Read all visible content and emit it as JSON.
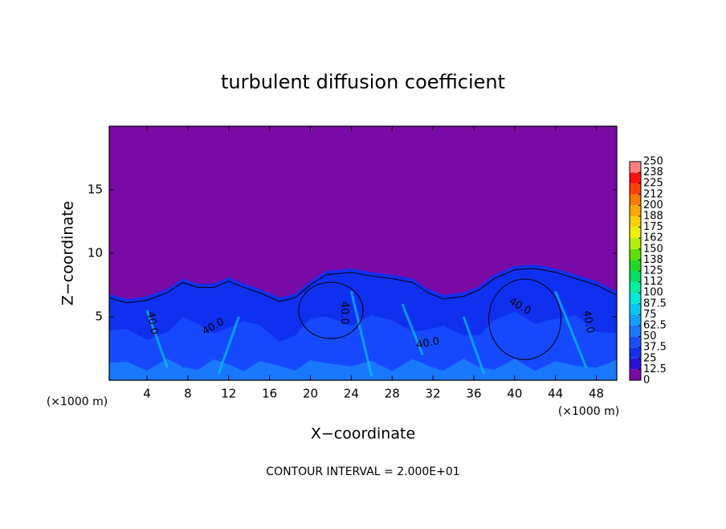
{
  "chart_data": {
    "type": "contour",
    "title": "turbulent diffusion coefficient",
    "xlabel": "X−coordinate",
    "ylabel": "Z−coordinate",
    "x_unit": "(×1000 m)",
    "y_unit": "(×1000 m)",
    "footer": "CONTOUR INTERVAL = 2.000E+01",
    "xlim": [
      0.3,
      50
    ],
    "ylim": [
      0,
      20
    ],
    "xticks": [
      4,
      8,
      12,
      16,
      20,
      24,
      28,
      32,
      36,
      40,
      44,
      48
    ],
    "yticks": [
      5,
      10,
      15
    ],
    "levels": [
      0,
      12.5,
      25,
      37.5,
      50,
      62.5,
      75,
      87.5,
      100,
      {
        "value": 112.5,
        "label": "112"
      },
      125,
      {
        "value": 137.5,
        "label": "138"
      },
      150,
      {
        "value": 162.5,
        "label": "162"
      },
      175,
      {
        "value": 187.5,
        "label": "188"
      },
      200,
      {
        "value": 212.5,
        "label": "212"
      },
      225,
      {
        "value": 237.5,
        "label": "238"
      },
      250
    ],
    "colors": [
      "#7a0aa6",
      "#2a10d8",
      "#1030f0",
      "#1850ff",
      "#1a78ff",
      "#10a0ff",
      "#00c8f0",
      "#00e8d8",
      "#00f0a0",
      "#00e060",
      "#20d820",
      "#60e000",
      "#b0f000",
      "#f0f000",
      "#ffd000",
      "#ffa800",
      "#ff7800",
      "#ff4000",
      "#ff1010",
      "#ff8080"
    ],
    "contour_labels": [
      "40.0",
      "40.0",
      "40.0",
      "40.0",
      "40.0",
      "40.0"
    ]
  }
}
